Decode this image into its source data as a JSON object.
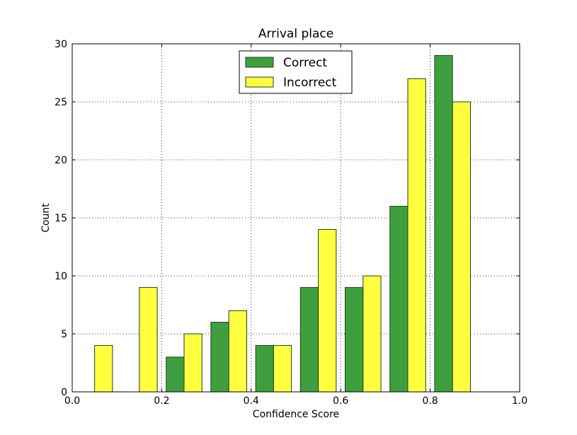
{
  "chart_data": {
    "type": "bar",
    "title": "Arrival place",
    "xlabel": "Confidence Score",
    "ylabel": "Count",
    "xlim": [
      0.0,
      1.0
    ],
    "ylim": [
      0,
      30
    ],
    "xticks": [
      "0.0",
      "0.2",
      "0.4",
      "0.6",
      "0.8",
      "1.0"
    ],
    "yticks": [
      "0",
      "5",
      "10",
      "15",
      "20",
      "25",
      "30"
    ],
    "grid": true,
    "legend_position": "top-center",
    "bins": [
      0.05,
      0.15,
      0.25,
      0.35,
      0.45,
      0.55,
      0.65,
      0.75,
      0.85,
      0.95
    ],
    "bin_width": 0.1,
    "series": [
      {
        "name": "Correct",
        "color": "#3f9f3f",
        "values": [
          0,
          0,
          3,
          6,
          4,
          9,
          9,
          16,
          29,
          0
        ]
      },
      {
        "name": "Incorrect",
        "color": "#ffff3f",
        "values": [
          4,
          9,
          5,
          7,
          4,
          14,
          10,
          27,
          25,
          0
        ]
      }
    ]
  }
}
